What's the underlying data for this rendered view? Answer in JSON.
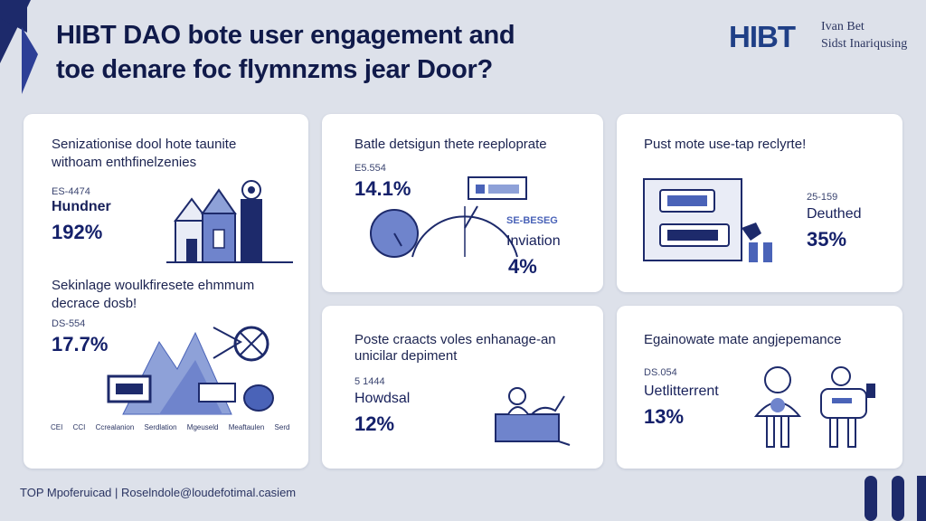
{
  "header": {
    "title_line1": "HIBT DAO bote user engagement and",
    "title_line2": "toe denare foc flymnzms jear Door?",
    "logo": "HIBT",
    "logo_sub1": "Ivan Bet",
    "logo_sub2": "Sidst Inariqusing"
  },
  "card1": {
    "heading1": "Senizationise dool hote taunite",
    "heading2": "withoam enthfinelzenies",
    "code1": "ES-4474",
    "label1": "Hundner",
    "pct1": "192%",
    "heading3": "Sekinlage woulkfiresete ehmmum",
    "heading4": "decrace dosb!",
    "code2": "DS-554",
    "pct2": "17.7%",
    "legend": [
      "CEI",
      "CCI",
      "Ccrealanion",
      "Serdlation",
      "Mgeuseld",
      "Meaftaulen",
      "Serd"
    ]
  },
  "card2": {
    "heading": "Batle detsigun thete reeploprate",
    "code": "E5.554",
    "pct1": "14.1%",
    "label": "Inviation",
    "tag": "SE-BESEG",
    "pct2": "4%"
  },
  "card3": {
    "heading": "Pust mote use-tap reclyrte!",
    "code": "25-159",
    "label": "Deuthed",
    "pct": "35%"
  },
  "card4": {
    "heading1": "Poste craacts voles enhanage-an",
    "heading2": "unicilar depiment",
    "code": "5 1444",
    "label": "Howdsal",
    "pct": "12%"
  },
  "card5": {
    "heading": "Egainowate mate angjepemance",
    "code": "DS.054",
    "label": "Uetlitterrent",
    "pct": "13%"
  },
  "footer": {
    "text": "TOP Mpoferuicad | Roselndole@loudefotimal.casiem"
  },
  "colors": {
    "navy": "#1d2a6b",
    "blue": "#4a63b8",
    "light_blue": "#8ea1d8",
    "bg": "#dde1ea"
  }
}
